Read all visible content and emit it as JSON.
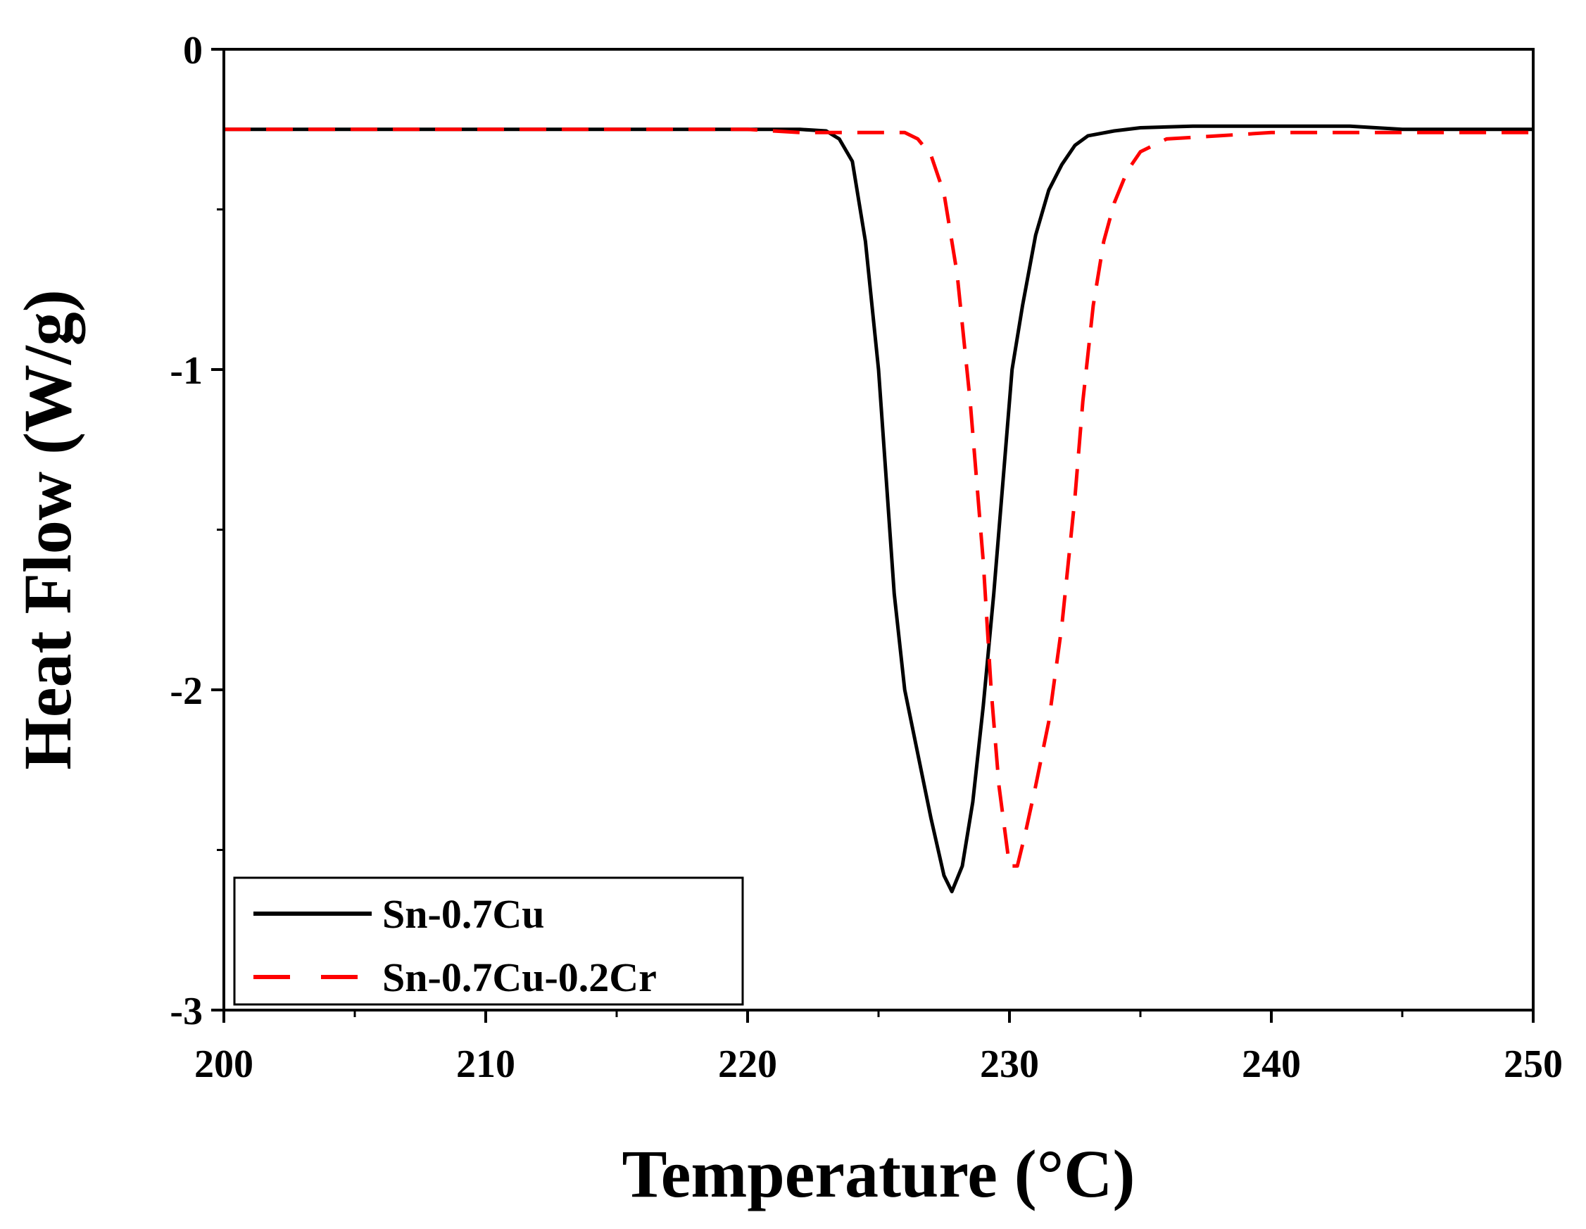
{
  "chart_data": {
    "type": "line",
    "title": "",
    "xlabel": "Temperature (°C)",
    "ylabel": "Heat Flow (W/g)",
    "xlim": [
      200,
      250
    ],
    "ylim": [
      -3,
      0
    ],
    "xticks": [
      200,
      210,
      220,
      230,
      240,
      250
    ],
    "xtick_labels": [
      "200",
      "210",
      "220",
      "230",
      "240",
      "250"
    ],
    "xminor": [
      205,
      215,
      225,
      235,
      245
    ],
    "yticks": [
      0,
      -1,
      -2,
      -3
    ],
    "ytick_labels": [
      "0",
      "-1",
      "-2",
      "-3"
    ],
    "yminor": [
      -0.5,
      -1.5,
      -2.5
    ],
    "grid": false,
    "legend_position": "bottom-left",
    "series": [
      {
        "name": "Sn-0.7Cu",
        "color": "#000000",
        "dash": "solid",
        "x": [
          200,
          205,
          210,
          215,
          220,
          222,
          223,
          223.5,
          224,
          224.5,
          225,
          225.3,
          225.6,
          226,
          226.5,
          227,
          227.5,
          227.8,
          228.2,
          228.6,
          229,
          229.4,
          229.8,
          230.1,
          230.5,
          231,
          231.5,
          232,
          232.5,
          233,
          234,
          235,
          237,
          240,
          243,
          245,
          250
        ],
        "y": [
          -0.25,
          -0.25,
          -0.25,
          -0.25,
          -0.25,
          -0.25,
          -0.255,
          -0.28,
          -0.35,
          -0.6,
          -1.0,
          -1.35,
          -1.7,
          -2.0,
          -2.2,
          -2.4,
          -2.58,
          -2.63,
          -2.55,
          -2.35,
          -2.05,
          -1.7,
          -1.3,
          -1.0,
          -0.8,
          -0.58,
          -0.44,
          -0.36,
          -0.3,
          -0.27,
          -0.255,
          -0.245,
          -0.24,
          -0.24,
          -0.24,
          -0.25,
          -0.25
        ]
      },
      {
        "name": "Sn-0.7Cu-0.2Cr",
        "color": "#ff0000",
        "dash": "dashed",
        "x": [
          200,
          205,
          210,
          215,
          220,
          222,
          224,
          226,
          226.5,
          227,
          227.5,
          228,
          228.5,
          229,
          229.3,
          229.6,
          230,
          230.3,
          230.6,
          231,
          231.5,
          232,
          232.5,
          232.8,
          233.2,
          233.6,
          234,
          234.5,
          235,
          236,
          238,
          240,
          245,
          250
        ],
        "y": [
          -0.25,
          -0.25,
          -0.25,
          -0.25,
          -0.25,
          -0.26,
          -0.26,
          -0.26,
          -0.28,
          -0.33,
          -0.45,
          -0.7,
          -1.1,
          -1.6,
          -2.0,
          -2.3,
          -2.55,
          -2.55,
          -2.45,
          -2.3,
          -2.1,
          -1.8,
          -1.4,
          -1.1,
          -0.8,
          -0.6,
          -0.48,
          -0.38,
          -0.32,
          -0.28,
          -0.27,
          -0.26,
          -0.26,
          -0.26
        ]
      }
    ]
  }
}
